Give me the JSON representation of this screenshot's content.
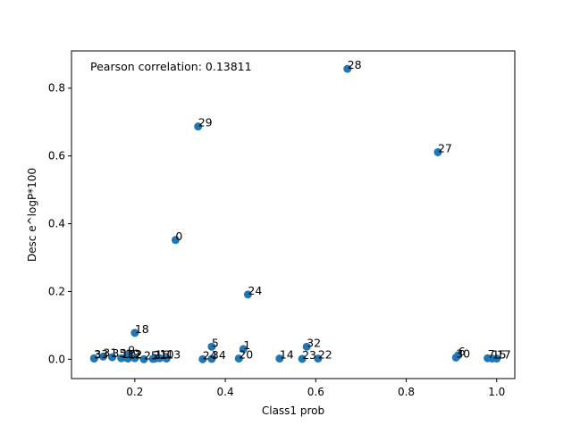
{
  "chart_data": {
    "type": "scatter",
    "xlabel": "Class1 prob",
    "ylabel": "Desc e^logP*100",
    "annotation": "Pearson correlation: 0.13811",
    "xlim": [
      0.06,
      1.04
    ],
    "ylim": [
      -0.057,
      0.91
    ],
    "xticks": [
      0.2,
      0.4,
      0.6,
      0.8,
      1.0
    ],
    "yticks": [
      0.0,
      0.2,
      0.4,
      0.6,
      0.8
    ],
    "grid": false,
    "marker_color": "#1f77b4",
    "points": [
      {
        "label": "0",
        "x": 0.29,
        "y": 0.352
      },
      {
        "label": "1",
        "x": 0.44,
        "y": 0.03
      },
      {
        "label": "2",
        "x": 0.2,
        "y": 0.003
      },
      {
        "label": "3",
        "x": 0.11,
        "y": 0.002
      },
      {
        "label": "5",
        "x": 0.37,
        "y": 0.037
      },
      {
        "label": "6",
        "x": 0.915,
        "y": 0.012
      },
      {
        "label": "7",
        "x": 0.98,
        "y": 0.003
      },
      {
        "label": "9",
        "x": 0.185,
        "y": 0.015
      },
      {
        "label": "10",
        "x": 0.255,
        "y": 0.003
      },
      {
        "label": "11",
        "x": 0.17,
        "y": 0.003
      },
      {
        "label": "12",
        "x": 0.185,
        "y": 0.002
      },
      {
        "label": "13",
        "x": 0.27,
        "y": 0.002
      },
      {
        "label": "14",
        "x": 0.52,
        "y": 0.002
      },
      {
        "label": "15",
        "x": 0.99,
        "y": 0.002
      },
      {
        "label": "16",
        "x": 0.245,
        "y": 0.002
      },
      {
        "label": "17",
        "x": 1.0,
        "y": 0.002
      },
      {
        "label": "18",
        "x": 0.2,
        "y": 0.078
      },
      {
        "label": "19",
        "x": 0.18,
        "y": 0.005
      },
      {
        "label": "20",
        "x": 0.43,
        "y": 0.002
      },
      {
        "label": "21",
        "x": 0.24,
        "y": 0.001
      },
      {
        "label": "22",
        "x": 0.605,
        "y": 0.002
      },
      {
        "label": "23",
        "x": 0.57,
        "y": 0.001
      },
      {
        "label": "24",
        "x": 0.45,
        "y": 0.191
      },
      {
        "label": "24",
        "x": 0.35,
        "y": 0.0
      },
      {
        "label": "25",
        "x": 0.22,
        "y": 0.0
      },
      {
        "label": "27",
        "x": 0.87,
        "y": 0.611
      },
      {
        "label": "28",
        "x": 0.67,
        "y": 0.857
      },
      {
        "label": "29",
        "x": 0.34,
        "y": 0.687
      },
      {
        "label": "30",
        "x": 0.91,
        "y": 0.005
      },
      {
        "label": "31",
        "x": 0.13,
        "y": 0.008
      },
      {
        "label": "32",
        "x": 0.58,
        "y": 0.037
      },
      {
        "label": "33",
        "x": 0.11,
        "y": 0.003
      },
      {
        "label": "34",
        "x": 0.37,
        "y": 0.001
      },
      {
        "label": "35",
        "x": 0.15,
        "y": 0.006
      }
    ]
  }
}
